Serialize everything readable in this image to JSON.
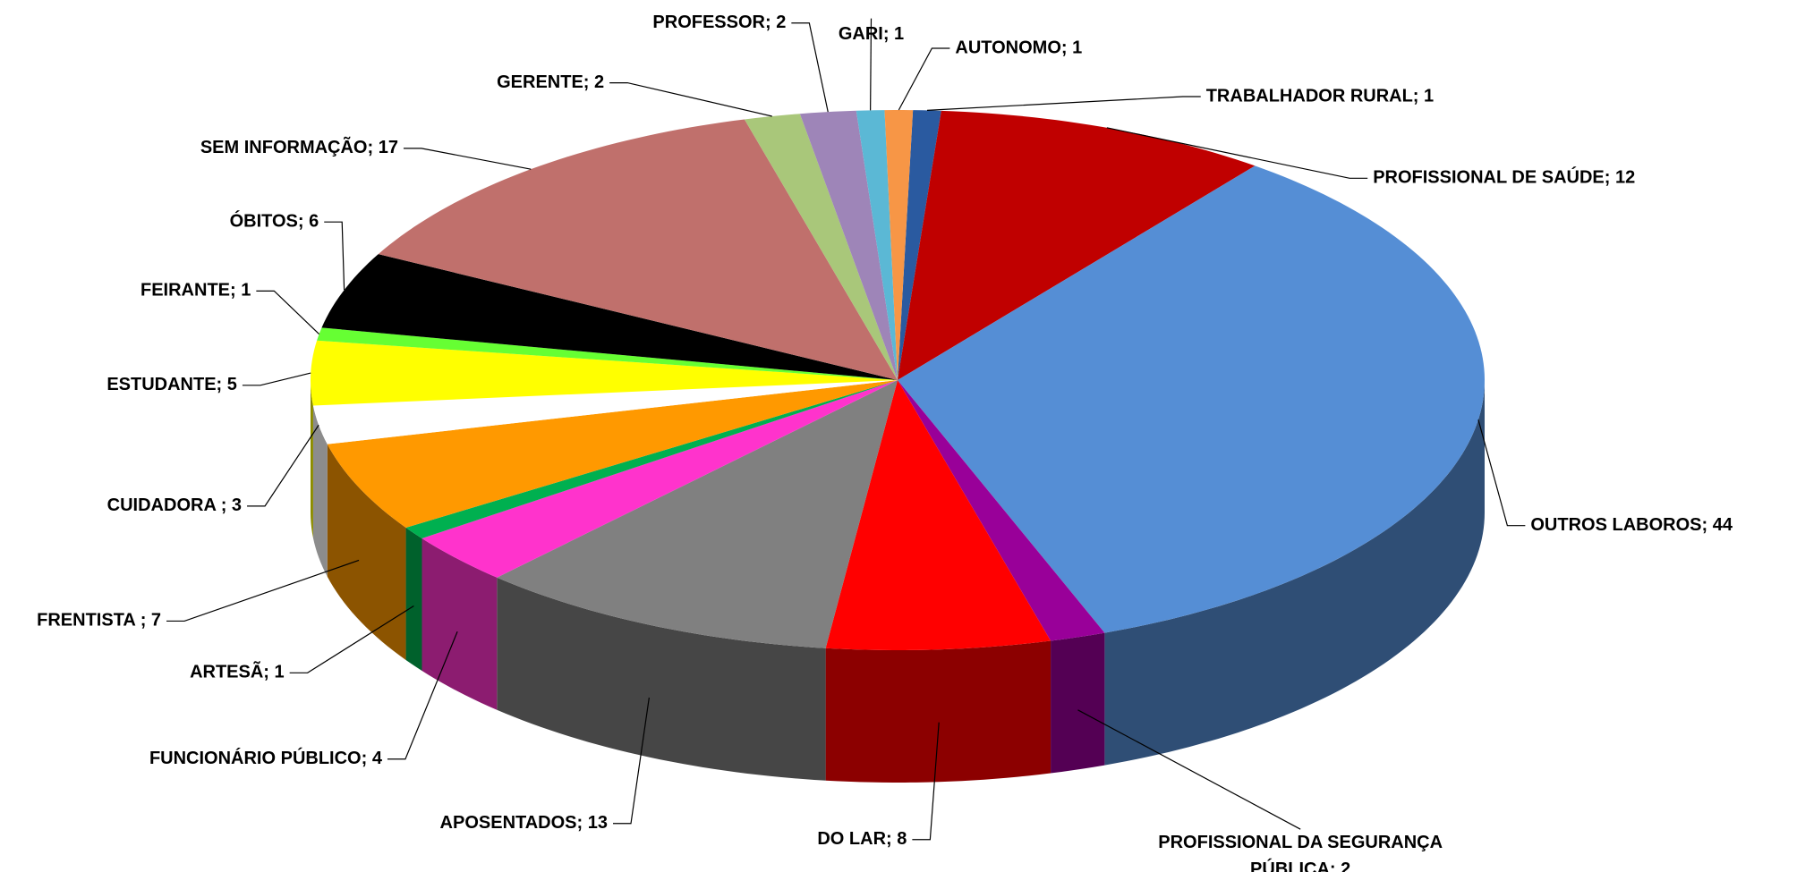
{
  "chart_data": {
    "type": "pie3d",
    "values": [
      1,
      12,
      44,
      2,
      8,
      13,
      4,
      1,
      7,
      3,
      5,
      1,
      6,
      17,
      2,
      2,
      1,
      1
    ],
    "value_labels": [
      "TRABALHADOR RURAL; 1",
      "PROFISSIONAL DE SAÚDE; 12",
      "OUTROS LABOROS; 44",
      "PROFISSIONAL DA SEGURANÇA PÚBLICA; 2",
      "DO LAR; 8",
      "APOSENTADOS; 13",
      "FUNCIONÁRIO PÚBLICO; 4",
      "ARTESÃ; 1",
      "FRENTISTA ; 7",
      "CUIDADORA ; 3",
      "ESTUDANTE; 5",
      "FEIRANTE; 1",
      "ÓBITOS; 6",
      "SEM INFORMAÇÃO; 17",
      "GERENTE; 2",
      "PROFESSOR; 2",
      "GARI; 1",
      "AUTONOMO; 1"
    ],
    "colors": [
      "#2a5aa0",
      "#c00000",
      "#558ed5",
      "#990099",
      "#ff0000",
      "#808080",
      "#ff33cc",
      "#00b050",
      "#ff9900",
      "#ffffff",
      "#ffff00",
      "#66ff33",
      "#000000",
      "#c0706c",
      "#a9c77a",
      "#9e85b8",
      "#5bb8d5",
      "#f79646"
    ]
  }
}
